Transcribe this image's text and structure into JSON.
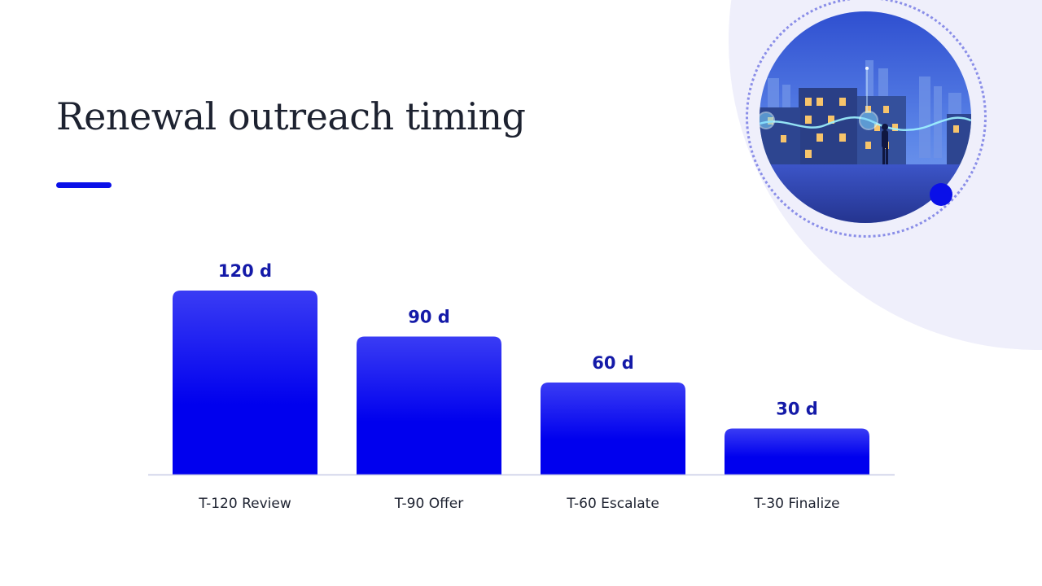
{
  "slide": {
    "title": "Renewal outreach timing"
  },
  "illustration": {
    "icon": "city-apartments-illustration"
  },
  "colors": {
    "accent": "#0a10e8",
    "bar_top": "#3a3cf4",
    "bar_bottom": "#0000ee",
    "value_text": "#141aa8",
    "decor_bg": "#efeffb"
  },
  "chart_data": {
    "type": "bar",
    "title": "",
    "xlabel": "",
    "ylabel": "",
    "categories": [
      "T-120 Review",
      "T-90 Offer",
      "T-60 Escalate",
      "T-30 Finalize"
    ],
    "values": [
      120,
      90,
      60,
      30
    ],
    "value_labels": [
      "120 d",
      "90 d",
      "60 d",
      "30 d"
    ],
    "ylim": [
      0,
      120
    ],
    "grid": false,
    "legend": "none"
  }
}
